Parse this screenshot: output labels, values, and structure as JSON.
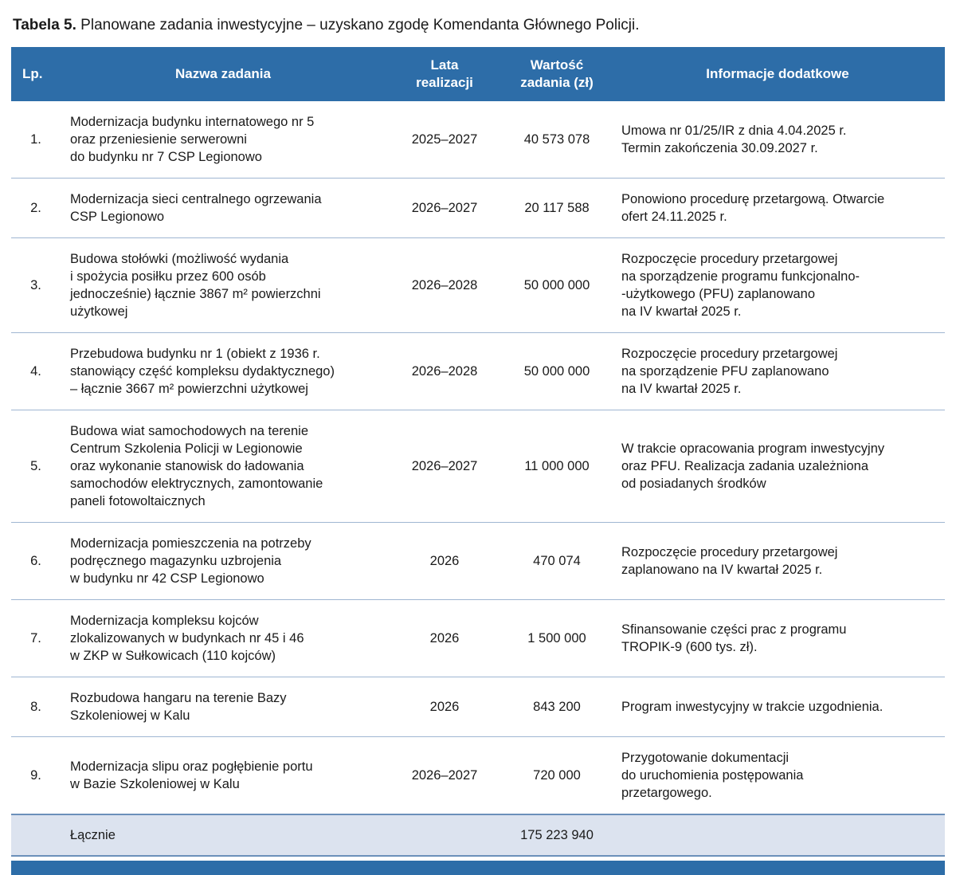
{
  "caption": {
    "label": "Tabela 5.",
    "text": " Planowane zadania inwestycyjne – uzyskano zgodę Komendanta Głównego Policji."
  },
  "colors": {
    "header_bg": "#2d6da8",
    "header_text": "#ffffff",
    "row_separator": "#9fb6d2",
    "footer_bg": "#dce3ef",
    "footer_border": "#6b90ba",
    "accent_bar": "#2d6da8"
  },
  "table": {
    "columns": [
      "Lp.",
      "Nazwa zadania",
      "Lata\nrealizacji",
      "Wartość\nzadania (zł)",
      "Informacje dodatkowe"
    ],
    "rows": [
      {
        "lp": "1.",
        "name": "Modernizacja budynku internatowego nr 5\noraz przeniesienie serwerowni\ndo budynku nr 7 CSP Legionowo",
        "years": "2025–2027",
        "value": "40 573 078",
        "info": "Umowa nr 01/25/IR z dnia 4.04.2025 r.\nTermin zakończenia 30.09.2027 r."
      },
      {
        "lp": "2.",
        "name": "Modernizacja sieci centralnego ogrzewania\nCSP Legionowo",
        "years": "2026–2027",
        "value": "20 117 588",
        "info": "Ponowiono procedurę przetargową. Otwarcie\nofert 24.11.2025 r."
      },
      {
        "lp": "3.",
        "name": "Budowa stołówki (możliwość wydania\ni spożycia posiłku przez 600 osób\njednocześnie) łącznie 3867 m² powierzchni\nużytkowej",
        "years": "2026–2028",
        "value": "50 000 000",
        "info": "Rozpoczęcie procedury przetargowej\nna sporządzenie programu funkcjonalno-\n-użytkowego (PFU) zaplanowano\nna IV kwartał 2025 r."
      },
      {
        "lp": "4.",
        "name": "Przebudowa budynku nr 1 (obiekt z 1936 r.\nstanowiący część kompleksu dydaktycznego)\n– łącznie 3667 m² powierzchni użytkowej",
        "years": "2026–2028",
        "value": "50 000 000",
        "info": "Rozpoczęcie procedury przetargowej\nna sporządzenie PFU zaplanowano\nna IV kwartał 2025 r."
      },
      {
        "lp": "5.",
        "name": "Budowa wiat samochodowych na terenie\nCentrum Szkolenia Policji w Legionowie\noraz wykonanie stanowisk do ładowania\nsamochodów elektrycznych, zamontowanie\npaneli fotowoltaicznych",
        "years": "2026–2027",
        "value": "11 000 000",
        "info": "W trakcie opracowania program inwestycyjny\noraz PFU. Realizacja zadania uzależniona\nod posiadanych środków"
      },
      {
        "lp": "6.",
        "name": "Modernizacja pomieszczenia na potrzeby\npodręcznego magazynku uzbrojenia\nw budynku nr 42 CSP Legionowo",
        "years": "2026",
        "value": "470 074",
        "info": "Rozpoczęcie procedury przetargowej\nzaplanowano na IV kwartał 2025 r."
      },
      {
        "lp": "7.",
        "name": "Modernizacja kompleksu kojców\nzlokalizowanych w budynkach nr 45 i 46\nw ZKP w Sułkowicach (110 kojców)",
        "years": "2026",
        "value": "1 500 000",
        "info": "Sfinansowanie części prac z programu\nTROPIK-9 (600 tys. zł)."
      },
      {
        "lp": "8.",
        "name": "Rozbudowa hangaru na terenie Bazy\nSzkoleniowej w Kalu",
        "years": "2026",
        "value": "843 200",
        "info": "Program inwestycyjny w trakcie uzgodnienia."
      },
      {
        "lp": "9.",
        "name": "Modernizacja slipu oraz pogłębienie portu\nw Bazie Szkoleniowej w Kalu",
        "years": "2026–2027",
        "value": "720 000",
        "info": "Przygotowanie dokumentacji\ndo uruchomienia postępowania\nprzetargowego."
      }
    ],
    "footer": {
      "label": "Łącznie",
      "total": "175 223 940"
    }
  }
}
